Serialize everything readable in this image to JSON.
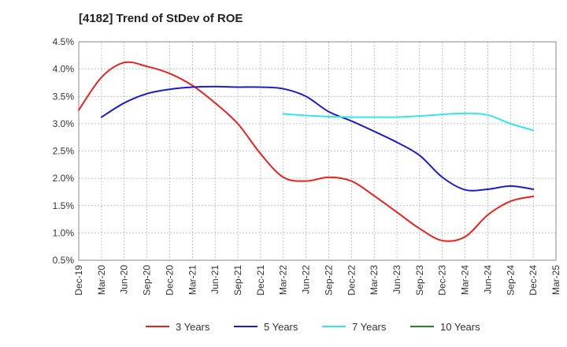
{
  "chart_data": {
    "type": "line",
    "title": "[4182]  Trend of StDev of ROE",
    "xlabel": "",
    "ylabel": "",
    "x_ticks": [
      "Dec-19",
      "Mar-20",
      "Jun-20",
      "Sep-20",
      "Dec-20",
      "Mar-21",
      "Jun-21",
      "Sep-21",
      "Dec-21",
      "Mar-22",
      "Jun-22",
      "Sep-22",
      "Dec-22",
      "Mar-23",
      "Jun-23",
      "Sep-23",
      "Dec-23",
      "Mar-24",
      "Jun-24",
      "Sep-24",
      "Dec-24",
      "Mar-25"
    ],
    "y_ticks": [
      "0.5%",
      "1.0%",
      "1.5%",
      "2.0%",
      "2.5%",
      "3.0%",
      "3.5%",
      "4.0%",
      "4.5%"
    ],
    "ylim": [
      0.5,
      4.5
    ],
    "grid": true,
    "legend_position": "bottom",
    "series": [
      {
        "name": "3 Years",
        "color": "#e8231f",
        "values": [
          3.25,
          3.85,
          4.12,
          4.05,
          3.92,
          3.7,
          3.38,
          3.0,
          2.45,
          2.02,
          1.95,
          2.02,
          1.95,
          1.68,
          1.38,
          1.08,
          0.86,
          0.93,
          1.33,
          1.58,
          1.67,
          null
        ]
      },
      {
        "name": "5 Years",
        "color": "#1a1ec8",
        "values": [
          null,
          3.12,
          3.38,
          3.55,
          3.63,
          3.67,
          3.68,
          3.67,
          3.67,
          3.64,
          3.5,
          3.22,
          3.05,
          2.86,
          2.66,
          2.42,
          2.02,
          1.79,
          1.8,
          1.86,
          1.8,
          null
        ]
      },
      {
        "name": "7 Years",
        "color": "#33e6ea",
        "values": [
          null,
          null,
          null,
          null,
          null,
          null,
          null,
          null,
          null,
          3.18,
          3.15,
          3.13,
          3.12,
          3.12,
          3.12,
          3.14,
          3.17,
          3.19,
          3.16,
          3.0,
          2.88,
          null
        ]
      },
      {
        "name": "10 Years",
        "color": "#1f8a1f",
        "values": []
      }
    ]
  }
}
